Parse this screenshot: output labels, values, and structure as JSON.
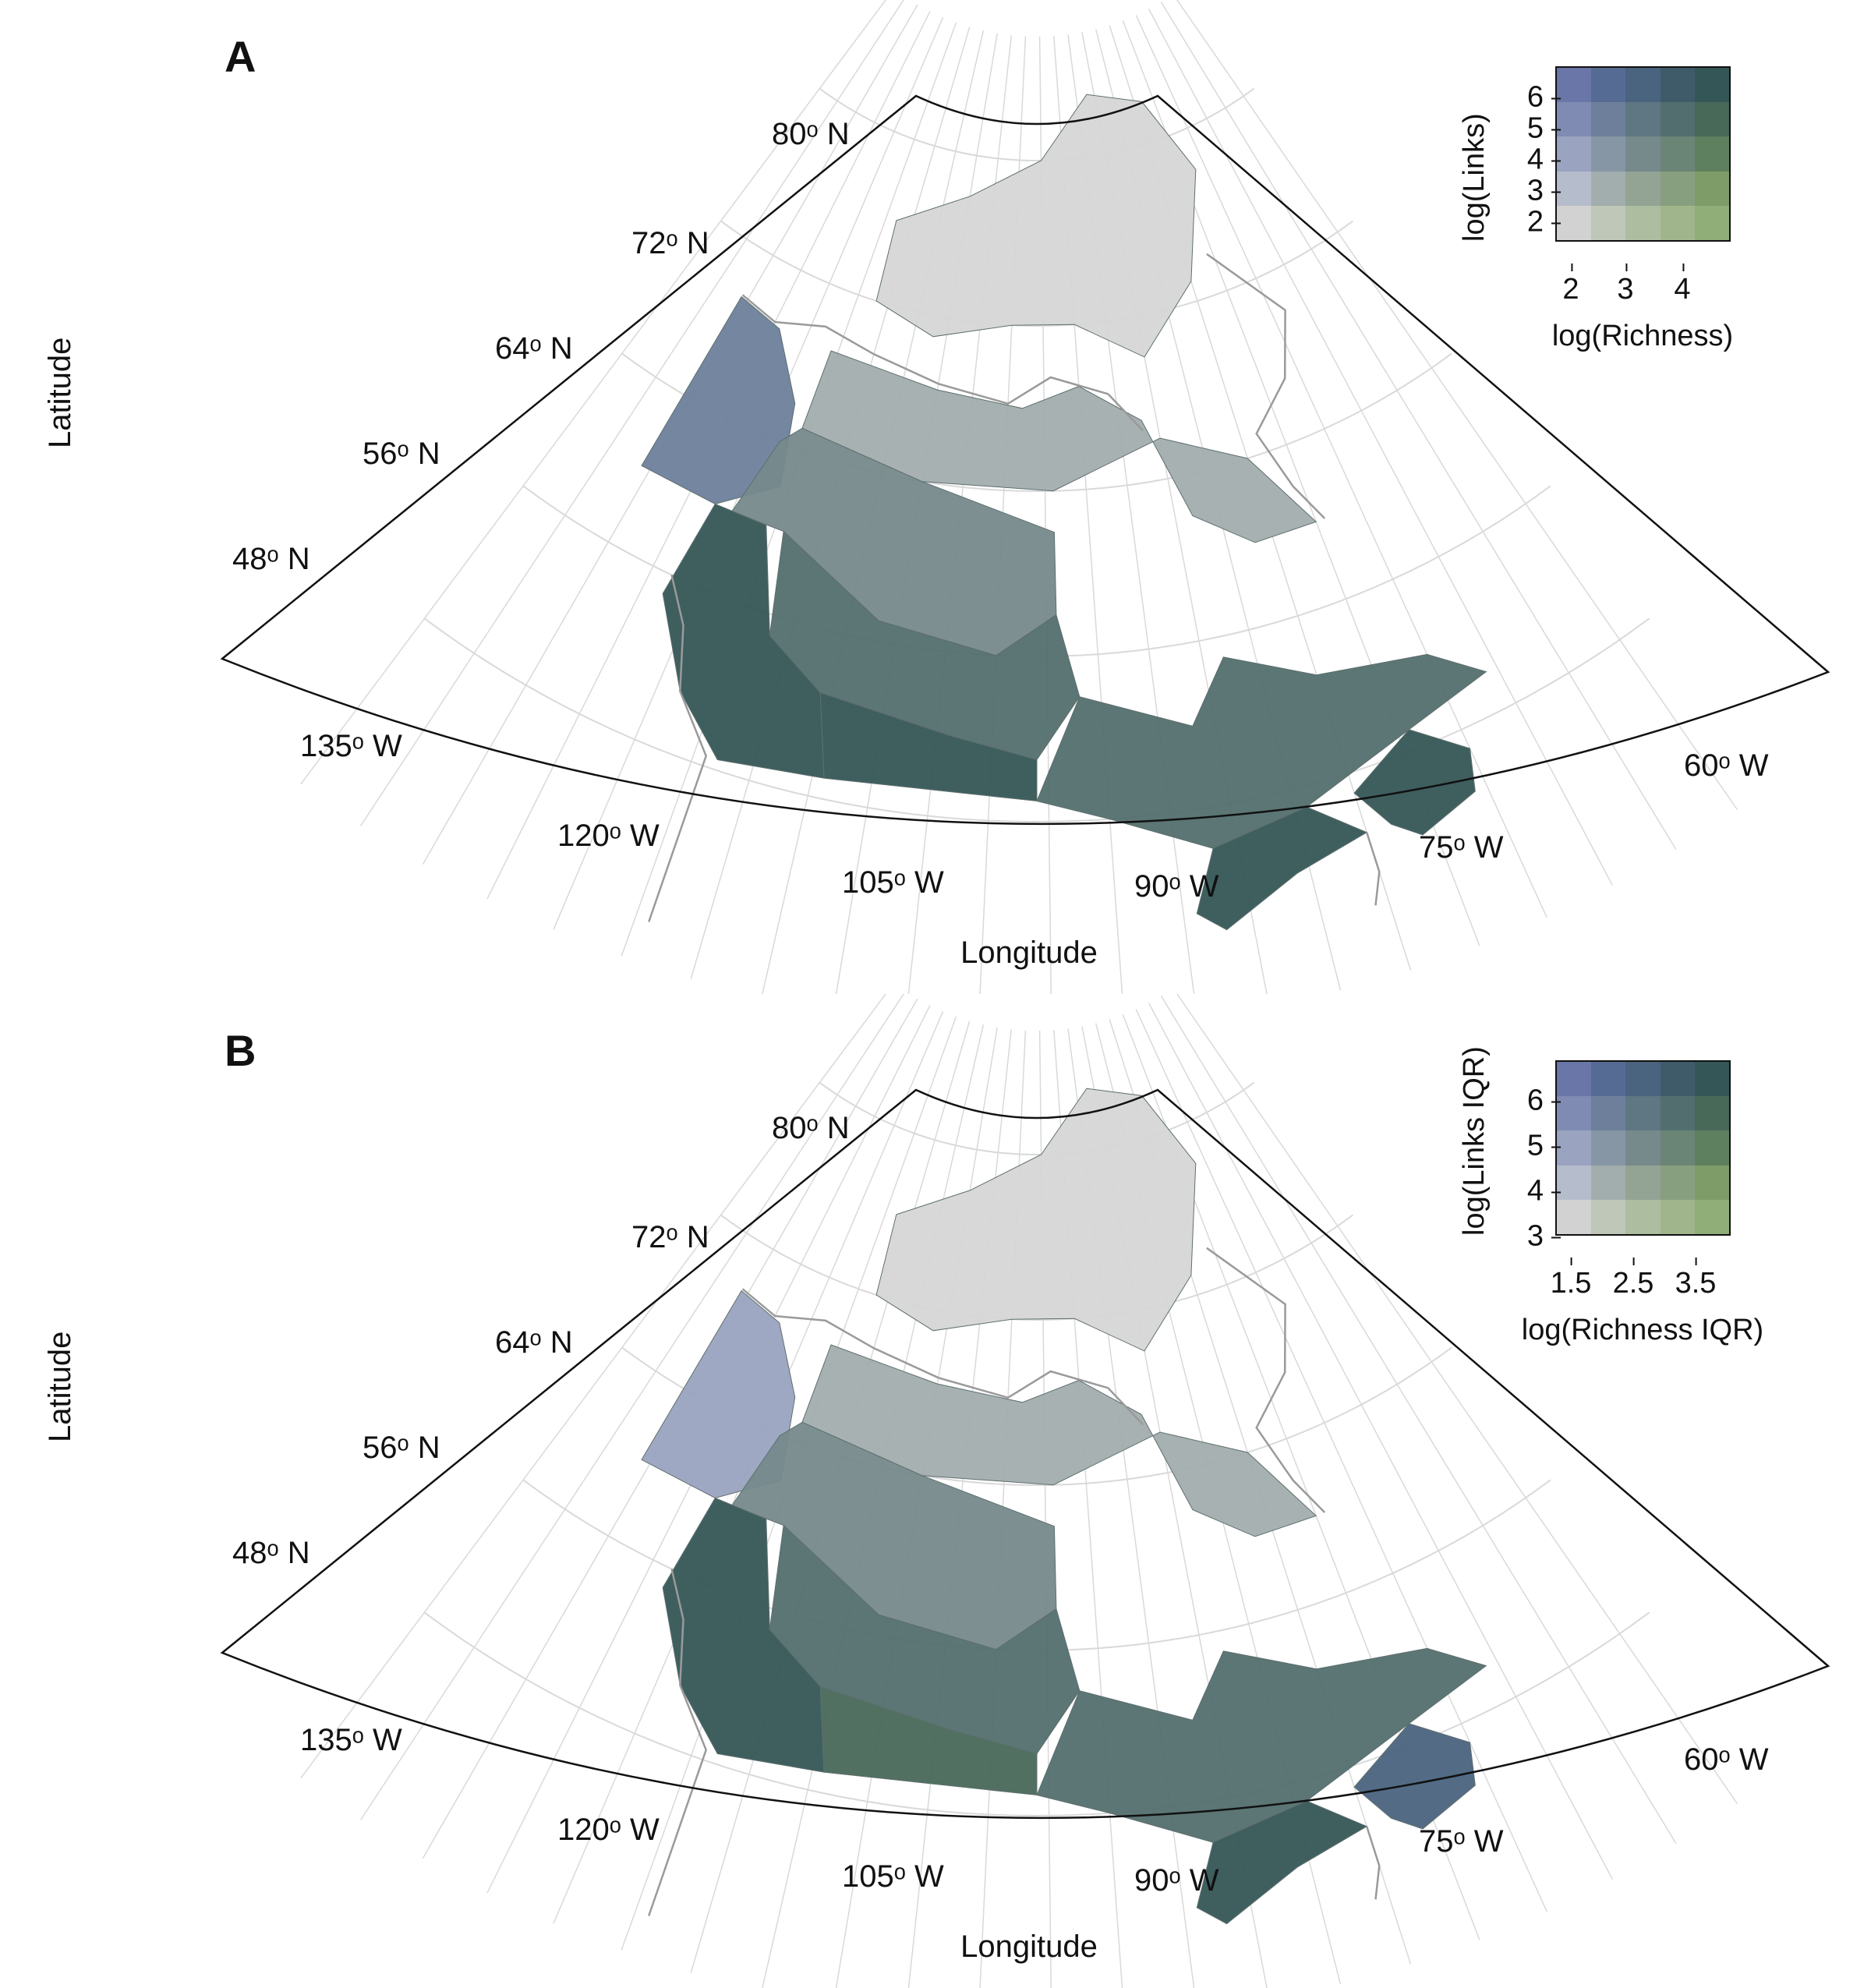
{
  "colors": {
    "frame": "#111111",
    "graticule": "#d9d9d9",
    "arctic": "#d6d6d6",
    "coast": "#9a9a9a",
    "bivariate": [
      [
        "#6a76a8",
        "#566b93",
        "#4a637e",
        "#3f5b6a",
        "#355656"
      ],
      [
        "#7f8bb3",
        "#6d7f9b",
        "#5f7683",
        "#536e6e",
        "#486858"
      ],
      [
        "#9aa3bf",
        "#8696a4",
        "#76898b",
        "#6a8476",
        "#5f805f"
      ],
      [
        "#b5bccb",
        "#a2adad",
        "#93a394",
        "#889f7f",
        "#7d9c68"
      ],
      [
        "#d2d2d2",
        "#bfc7b8",
        "#adbd9f",
        "#a0b58b",
        "#8fae78"
      ]
    ]
  },
  "panels": [
    {
      "label": "A",
      "x_axis_label": "Longitude",
      "y_axis_label": "Latitude",
      "lat_ticks": [
        "80ᵒ N",
        "72ᵒ N",
        "64ᵒ N",
        "56ᵒ N",
        "48ᵒ N"
      ],
      "lon_ticks": [
        "135ᵒ W",
        "120ᵒ W",
        "105ᵒ W",
        "90ᵒ W",
        "75ᵒ W",
        "60ᵒ W"
      ],
      "legend": {
        "x_label": "log(Richness)",
        "y_label": "log(Links)",
        "x_ticks": [
          "2",
          "3",
          "4"
        ],
        "y_ticks": [
          "6",
          "5",
          "4",
          "3",
          "2"
        ]
      },
      "regions": [
        {
          "name": "arctic-islands",
          "richness_class": 0,
          "links_class": 0
        },
        {
          "name": "yukon-north",
          "richness_class": 1,
          "links_class": 3
        },
        {
          "name": "northern-arctic-mainland",
          "richness_class": 1,
          "links_class": 1
        },
        {
          "name": "taiga-shield",
          "richness_class": 2,
          "links_class": 2
        },
        {
          "name": "boreal-plains",
          "richness_class": 3,
          "links_class": 3
        },
        {
          "name": "prairies",
          "richness_class": 4,
          "links_class": 4
        },
        {
          "name": "pacific-maritime",
          "richness_class": 4,
          "links_class": 4
        },
        {
          "name": "boreal-shield",
          "richness_class": 3,
          "links_class": 3
        },
        {
          "name": "mixedwood-plains",
          "richness_class": 4,
          "links_class": 4
        },
        {
          "name": "atlantic-maritime",
          "richness_class": 4,
          "links_class": 4
        }
      ]
    },
    {
      "label": "B",
      "x_axis_label": "Longitude",
      "y_axis_label": "Latitude",
      "lat_ticks": [
        "80ᵒ N",
        "72ᵒ N",
        "64ᵒ N",
        "56ᵒ N",
        "48ᵒ N"
      ],
      "lon_ticks": [
        "135ᵒ W",
        "120ᵒ W",
        "105ᵒ W",
        "90ᵒ W",
        "75ᵒ W",
        "60ᵒ W"
      ],
      "legend": {
        "x_label": "log(Richness IQR)",
        "y_label": "log(Links IQR)",
        "x_ticks": [
          "1.5",
          "2.5",
          "3.5"
        ],
        "y_ticks": [
          "6",
          "5",
          "4",
          "3"
        ]
      },
      "regions": [
        {
          "name": "arctic-islands",
          "richness_class": 0,
          "links_class": 0
        },
        {
          "name": "yukon-north",
          "richness_class": 0,
          "links_class": 2
        },
        {
          "name": "northern-arctic-mainland",
          "richness_class": 1,
          "links_class": 1
        },
        {
          "name": "taiga-shield",
          "richness_class": 2,
          "links_class": 2
        },
        {
          "name": "boreal-plains",
          "richness_class": 3,
          "links_class": 3
        },
        {
          "name": "prairies",
          "richness_class": 4,
          "links_class": 3
        },
        {
          "name": "pacific-maritime",
          "richness_class": 4,
          "links_class": 4
        },
        {
          "name": "boreal-shield",
          "richness_class": 3,
          "links_class": 3
        },
        {
          "name": "mixedwood-plains",
          "richness_class": 4,
          "links_class": 4
        },
        {
          "name": "atlantic-maritime",
          "richness_class": 2,
          "links_class": 4
        }
      ]
    }
  ]
}
